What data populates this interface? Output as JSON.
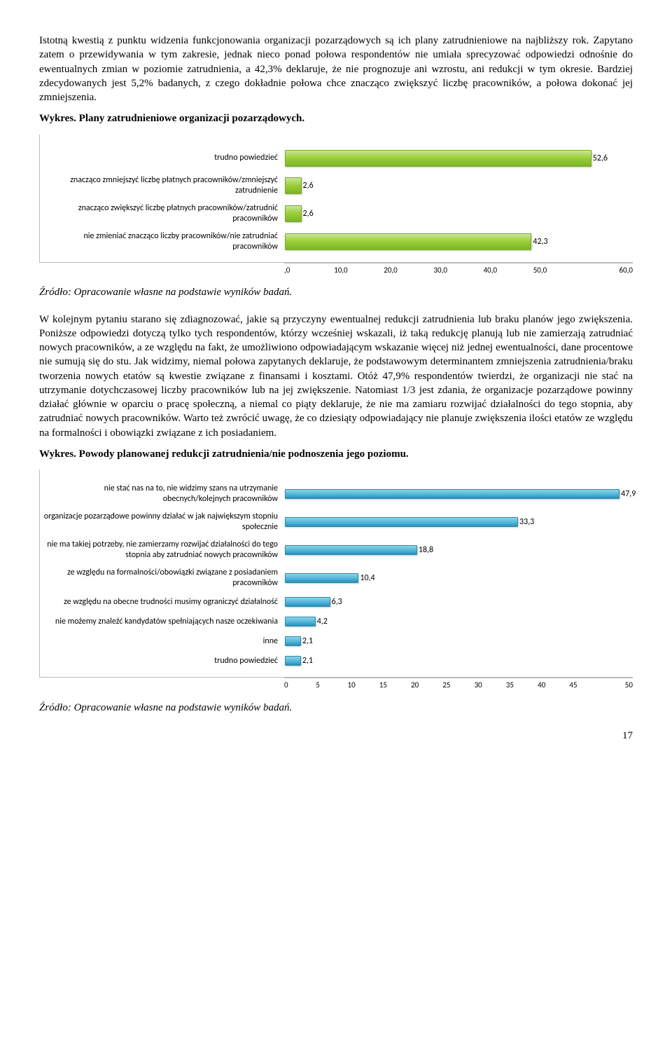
{
  "intro": "Istotną kwestią z punktu widzenia funkcjonowania organizacji pozarządowych są ich plany zatrudnieniowe na najbliższy rok. Zapytano zatem o przewidywania w tym zakresie, jednak nieco ponad połowa respondentów nie umiała sprecyzować odpowiedzi odnośnie do ewentualnych zmian w poziomie zatrudnienia, a 42,3% deklaruje, że nie prognozuje ani wzrostu, ani redukcji w tym okresie. Bardziej zdecydowanych jest 5,2% badanych, z czego dokładnie połowa chce znacząco zwiększyć liczbę pracowników, a połowa dokonać jej zmniejszenia.",
  "chart1_title": "Wykres. Plany zatrudnieniowe organizacji pozarządowych.",
  "chart1": {
    "type": "bar",
    "orientation": "horizontal",
    "categories": [
      "trudno powiedzieć",
      "znacząco zmniejszyć liczbę płatnych pracowników/zmniejszyć zatrudnienie",
      "znacząco zwiększyć liczbę płatnych pracowników/zatrudnić pracowników",
      "nie zmieniać znacząco liczby pracowników/nie zatrudniać pracowników"
    ],
    "values": [
      52.6,
      2.6,
      2.6,
      42.3
    ],
    "display_values": [
      "52,6",
      "2,6",
      "2,6",
      "42,3"
    ],
    "bar_color": "#9acd32",
    "xlim": [
      0,
      60
    ],
    "xticks": [
      ",0",
      "10,0",
      "20,0",
      "30,0",
      "40,0",
      "50,0",
      "60,0"
    ]
  },
  "src_note": "Źródło: Opracowanie własne na podstawie wyników badań.",
  "middle_para": "W kolejnym pytaniu starano się zdiagnozować, jakie są przyczyny ewentualnej redukcji zatrudnienia lub braku planów jego zwiększenia. Poniższe odpowiedzi dotyczą tylko tych respondentów, którzy wcześniej wskazali, iż taką redukcję planują lub nie zamierzają zatrudniać nowych pracowników, a ze względu na fakt, że umożliwiono odpowiadającym wskazanie więcej niż jednej ewentualności, dane procentowe nie sumują się do stu. Jak widzimy, niemal połowa zapytanych deklaruje, że podstawowym determinantem zmniejszenia zatrudnienia/braku tworzenia nowych etatów są kwestie związane z finansami i kosztami. Otóż 47,9% respondentów twierdzi, że organizacji nie stać na utrzymanie dotychczasowej liczby pracowników lub na jej zwiększenie. Natomiast 1/3 jest zdania, że organizacje pozarządowe powinny działać głównie w oparciu o pracę społeczną, a niemal co piąty deklaruje, że nie ma zamiaru rozwijać działalności do tego stopnia, aby zatrudniać nowych pracowników. Warto też zwrócić uwagę, że co dziesiąty odpowiadający nie planuje zwiększenia ilości etatów ze względu na formalności i obowiązki związane z ich posiadaniem.",
  "chart2_title": "Wykres. Powody planowanej redukcji zatrudnienia/nie podnoszenia jego poziomu.",
  "chart2": {
    "type": "bar",
    "orientation": "horizontal",
    "categories": [
      "nie stać nas na to, nie widzimy szans na utrzymanie obecnych/kolejnych pracowników",
      "organizacje pozarządowe powinny działać w jak największym stopniu społecznie",
      "nie ma takiej potrzeby, nie zamierzamy rozwijać działalności do tego stopnia aby zatrudniać nowych pracowników",
      "ze względu na formalności/obowiązki związane z posiadaniem pracowników",
      "ze względu na obecne trudności musimy ograniczyć działalność",
      "nie możemy znaleźć kandydatów spełniających nasze oczekiwania",
      "inne",
      "trudno powiedzieć"
    ],
    "values": [
      47.9,
      33.3,
      18.8,
      10.4,
      6.3,
      4.2,
      2.1,
      2.1
    ],
    "display_values": [
      "47,9",
      "33,3",
      "18,8",
      "10,4",
      "6,3",
      "4,2",
      "2,1",
      "2,1"
    ],
    "bar_color": "#4bb3d6",
    "xlim": [
      0,
      50
    ],
    "xticks": [
      "0",
      "5",
      "10",
      "15",
      "20",
      "25",
      "30",
      "35",
      "40",
      "45",
      "50"
    ]
  },
  "page_number": "17"
}
